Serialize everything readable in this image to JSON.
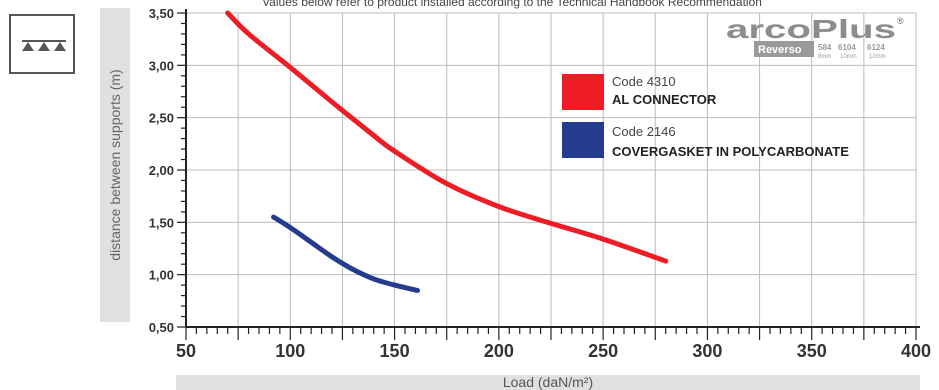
{
  "note": "Values below refer to product installed according to the Technical Handbook Recommendation",
  "logo": {
    "brand": "arcoPlus",
    "registered": "®",
    "sub_brand": "Reverso",
    "codes": [
      "584",
      "6104",
      "6124"
    ],
    "sizes": [
      "8mm",
      "10mm",
      "12mm"
    ]
  },
  "colors": {
    "code_4310": "#ee1c25",
    "code_2146": "#253b8e",
    "label_band": "#e0e0e0",
    "grid": "#bbbbbb"
  },
  "icon": {
    "name": "load-triangles-icon"
  },
  "chart_data": {
    "type": "line",
    "title": "",
    "xlabel": "Load (daN/m²)",
    "ylabel": "distance between supports (m)",
    "xlim": [
      50,
      400
    ],
    "ylim": [
      0.5,
      3.5
    ],
    "x_ticks": [
      "50",
      "100",
      "150",
      "200",
      "250",
      "300",
      "350",
      "400"
    ],
    "y_ticks": [
      "0,50",
      "1,00",
      "1,50",
      "2,00",
      "2,50",
      "3,00",
      "3,50"
    ],
    "grid": true,
    "legend_position": "right",
    "series": [
      {
        "code": "Code 4310",
        "name": "AL CONNECTOR",
        "color": "#ee1c25",
        "points": [
          [
            70,
            3.5
          ],
          [
            80,
            3.3
          ],
          [
            100,
            2.98
          ],
          [
            120,
            2.65
          ],
          [
            140,
            2.33
          ],
          [
            150,
            2.18
          ],
          [
            175,
            1.87
          ],
          [
            200,
            1.65
          ],
          [
            225,
            1.49
          ],
          [
            250,
            1.34
          ],
          [
            280,
            1.13
          ]
        ]
      },
      {
        "code": "Code 2146",
        "name": "COVERGASKET IN POLYCARBONATE",
        "color": "#253b8e",
        "points": [
          [
            92,
            1.55
          ],
          [
            100,
            1.45
          ],
          [
            110,
            1.31
          ],
          [
            120,
            1.17
          ],
          [
            130,
            1.05
          ],
          [
            140,
            0.96
          ],
          [
            150,
            0.9
          ],
          [
            161,
            0.85
          ]
        ]
      }
    ]
  }
}
